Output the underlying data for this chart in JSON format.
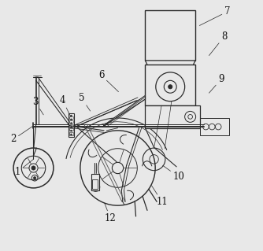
{
  "bg_color": "#e8e8e8",
  "line_color": "#2a2a2a",
  "label_fontsize": 8.5,
  "labels": {
    "1": {
      "lpos": [
        0.045,
        0.315
      ],
      "tpos": [
        0.108,
        0.365
      ]
    },
    "2": {
      "lpos": [
        0.028,
        0.445
      ],
      "tpos": [
        0.105,
        0.497
      ]
    },
    "3": {
      "lpos": [
        0.115,
        0.595
      ],
      "tpos": [
        0.148,
        0.543
      ]
    },
    "4": {
      "lpos": [
        0.225,
        0.6
      ],
      "tpos": [
        0.257,
        0.535
      ]
    },
    "5": {
      "lpos": [
        0.3,
        0.61
      ],
      "tpos": [
        0.335,
        0.558
      ]
    },
    "6": {
      "lpos": [
        0.38,
        0.7
      ],
      "tpos": [
        0.448,
        0.635
      ]
    },
    "7": {
      "lpos": [
        0.882,
        0.955
      ],
      "tpos": [
        0.772,
        0.9
      ]
    },
    "8": {
      "lpos": [
        0.87,
        0.855
      ],
      "tpos": [
        0.81,
        0.78
      ]
    },
    "9": {
      "lpos": [
        0.858,
        0.685
      ],
      "tpos": [
        0.81,
        0.63
      ]
    },
    "10": {
      "lpos": [
        0.688,
        0.295
      ],
      "tpos": [
        0.625,
        0.34
      ]
    },
    "11": {
      "lpos": [
        0.622,
        0.195
      ],
      "tpos": [
        0.58,
        0.26
      ]
    },
    "12": {
      "lpos": [
        0.415,
        0.13
      ],
      "tpos": [
        0.392,
        0.19
      ]
    }
  }
}
